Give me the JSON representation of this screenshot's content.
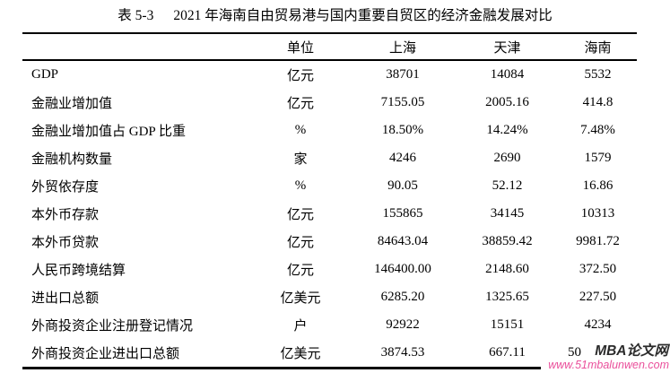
{
  "table": {
    "label": "表 5-3",
    "title": "2021 年海南自由贸易港与国内重要自贸区的经济金融发展对比",
    "columns": [
      "",
      "单位",
      "上海",
      "天津",
      "海南"
    ],
    "rows": [
      [
        "GDP",
        "亿元",
        "38701",
        "14084",
        "5532"
      ],
      [
        "金融业增加值",
        "亿元",
        "7155.05",
        "2005.16",
        "414.8"
      ],
      [
        "金融业增加值占 GDP 比重",
        "%",
        "18.50%",
        "14.24%",
        "7.48%"
      ],
      [
        "金融机构数量",
        "家",
        "4246",
        "2690",
        "1579"
      ],
      [
        "外贸依存度",
        "%",
        "90.05",
        "52.12",
        "16.86"
      ],
      [
        "本外币存款",
        "亿元",
        "155865",
        "34145",
        "10313"
      ],
      [
        "本外币贷款",
        "亿元",
        "84643.04",
        "38859.42",
        "9981.72"
      ],
      [
        "人民币跨境结算",
        "亿元",
        "146400.00",
        "2148.60",
        "372.50"
      ],
      [
        "进出口总额",
        "亿美元",
        "6285.20",
        "1325.65",
        "227.50"
      ],
      [
        "外商投资企业注册登记情况",
        "户",
        "92922",
        "15151",
        "4234"
      ],
      [
        "外商投资企业进出口总额",
        "亿美元",
        "3874.53",
        "667.11",
        "50"
      ]
    ]
  },
  "watermark": {
    "brand": "MBA论文网",
    "url": "www.51mbalunwen.com",
    "brand_color": "#2b2b2b",
    "url_color": "#ea4f9b"
  }
}
